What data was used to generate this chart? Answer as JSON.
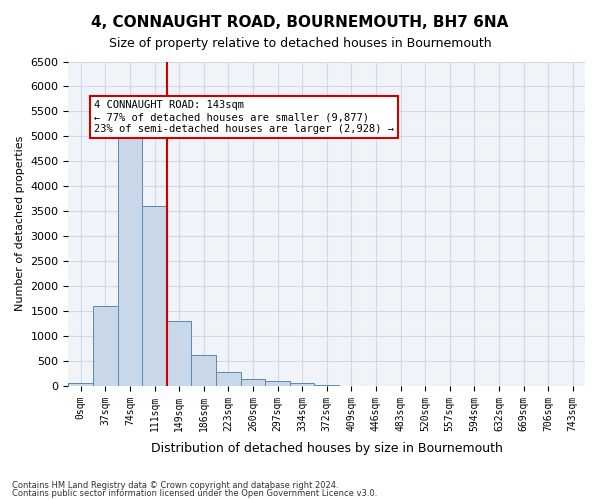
{
  "title": "4, CONNAUGHT ROAD, BOURNEMOUTH, BH7 6NA",
  "subtitle": "Size of property relative to detached houses in Bournemouth",
  "xlabel": "Distribution of detached houses by size in Bournemouth",
  "ylabel": "Number of detached properties",
  "footer1": "Contains HM Land Registry data © Crown copyright and database right 2024.",
  "footer2": "Contains public sector information licensed under the Open Government Licence v3.0.",
  "bar_labels": [
    "0sqm",
    "37sqm",
    "74sqm",
    "111sqm",
    "149sqm",
    "186sqm",
    "223sqm",
    "260sqm",
    "297sqm",
    "334sqm",
    "372sqm",
    "409sqm",
    "446sqm",
    "483sqm",
    "520sqm",
    "557sqm",
    "594sqm",
    "632sqm",
    "669sqm",
    "706sqm",
    "743sqm"
  ],
  "bar_values": [
    50,
    1600,
    5050,
    3600,
    1300,
    620,
    270,
    130,
    100,
    60,
    20,
    5,
    5,
    3,
    2,
    1,
    0,
    0,
    0,
    0,
    0
  ],
  "bar_color": "#c8d8e8",
  "bar_edge_color": "#5a8ab0",
  "vline_x": 3,
  "vline_color": "#cc0000",
  "ylim": [
    0,
    6500
  ],
  "yticks": [
    0,
    500,
    1000,
    1500,
    2000,
    2500,
    3000,
    3500,
    4000,
    4500,
    5000,
    5500,
    6000,
    6500
  ],
  "annotation_title": "4 CONNAUGHT ROAD: 143sqm",
  "annotation_line1": "← 77% of detached houses are smaller (9,877)",
  "annotation_line2": "23% of semi-detached houses are larger (2,928) →",
  "annotation_box_color": "#ffffff",
  "annotation_box_edge": "#cc0000",
  "grid_color": "#d0d8e8",
  "bg_color": "#f0f4f8"
}
